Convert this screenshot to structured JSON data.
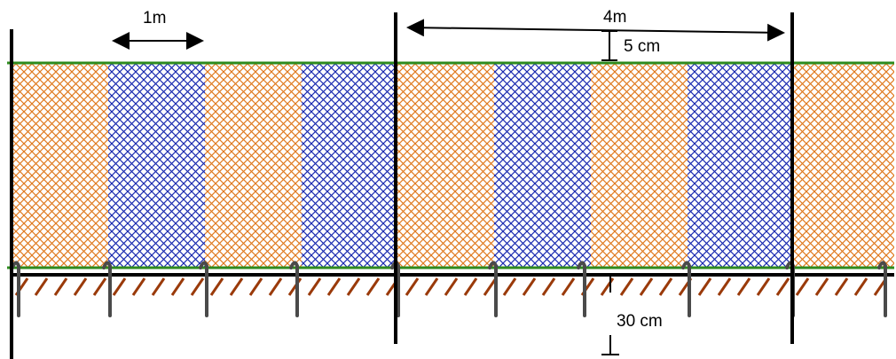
{
  "labels": {
    "panel_width": "1m",
    "post_spacing": "4m",
    "top_gap": "5 cm",
    "burial_depth": "30 cm"
  },
  "colors": {
    "orange_mesh": "#e07a1f",
    "blue_mesh": "#1a2bb0",
    "wire": "#2e8b1e",
    "post": "#000000",
    "peg": "#4a4a4a",
    "ground_hatch": "#9a3a0a"
  },
  "fence": {
    "panel_colors": [
      "orange",
      "blue",
      "orange",
      "blue",
      "orange",
      "blue",
      "orange",
      "blue",
      "orange"
    ],
    "post_count": 3,
    "peg_count": 10
  }
}
